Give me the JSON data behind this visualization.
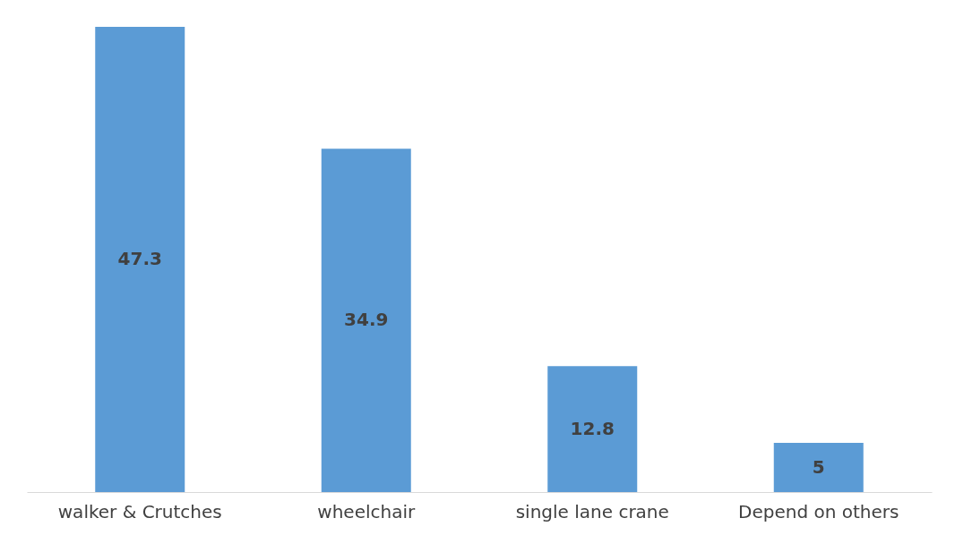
{
  "chart_data": {
    "type": "bar",
    "categories": [
      "walker & Crutches",
      "wheelchair",
      "single lane crane",
      "Depend on others"
    ],
    "values": [
      47.3,
      34.9,
      12.8,
      5
    ],
    "color": "#5b9bd5",
    "data_labels": true
  }
}
